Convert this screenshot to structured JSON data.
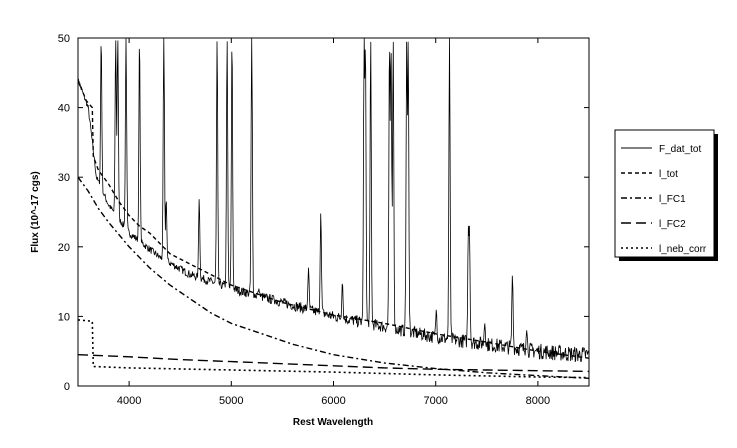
{
  "chart_data": {
    "type": "line",
    "xlabel": "Rest Wavelength",
    "ylabel": "Flux (10^-17 cgs)",
    "xlim": [
      3500,
      8500
    ],
    "ylim": [
      0,
      50
    ],
    "x_ticks": [
      4000,
      5000,
      6000,
      7000,
      8000
    ],
    "y_ticks": [
      0,
      10,
      20,
      30,
      40,
      50
    ],
    "legend_placement": "right",
    "series": [
      {
        "name": "F_dat_tot",
        "style": "solid",
        "continuum": [
          [
            3500,
            44
          ],
          [
            3600,
            40
          ],
          [
            3680,
            30
          ],
          [
            3800,
            26
          ],
          [
            4000,
            22
          ],
          [
            4300,
            18.5
          ],
          [
            4600,
            16
          ],
          [
            5000,
            14
          ],
          [
            5500,
            12
          ],
          [
            6000,
            10
          ],
          [
            6500,
            8.5
          ],
          [
            7000,
            7
          ],
          [
            7500,
            6
          ],
          [
            8000,
            5
          ],
          [
            8400,
            4.5
          ]
        ],
        "lines": [
          [
            3727,
            50
          ],
          [
            3869,
            50
          ],
          [
            3889,
            50
          ],
          [
            3970,
            50
          ],
          [
            4102,
            50
          ],
          [
            4340,
            50
          ],
          [
            4363,
            27
          ],
          [
            4686,
            27
          ],
          [
            4861,
            50
          ],
          [
            4959,
            50
          ],
          [
            5007,
            50
          ],
          [
            5200,
            50
          ],
          [
            5270,
            14
          ],
          [
            5412,
            13
          ],
          [
            5755,
            17
          ],
          [
            5876,
            25
          ],
          [
            6087,
            15
          ],
          [
            6300,
            50
          ],
          [
            6312,
            50
          ],
          [
            6364,
            50
          ],
          [
            6548,
            50
          ],
          [
            6563,
            50
          ],
          [
            6584,
            50
          ],
          [
            6716,
            50
          ],
          [
            6731,
            50
          ],
          [
            7006,
            11
          ],
          [
            7135,
            50
          ],
          [
            7320,
            23
          ],
          [
            7330,
            23
          ],
          [
            7480,
            9
          ],
          [
            7751,
            16
          ],
          [
            7890,
            8
          ]
        ]
      },
      {
        "name": "l_tot",
        "style": "dash",
        "points": [
          [
            3500,
            44
          ],
          [
            3580,
            41
          ],
          [
            3640,
            40
          ],
          [
            3650,
            33
          ],
          [
            3700,
            31
          ],
          [
            3800,
            29
          ],
          [
            3900,
            26.5
          ],
          [
            4000,
            24.5
          ],
          [
            4100,
            23
          ],
          [
            4200,
            22
          ],
          [
            4400,
            19
          ],
          [
            4600,
            17.5
          ],
          [
            4800,
            16
          ],
          [
            5000,
            14.5
          ],
          [
            5200,
            13.5
          ],
          [
            5500,
            12
          ],
          [
            6000,
            10.2
          ],
          [
            6500,
            9
          ],
          [
            7000,
            7.5
          ],
          [
            7500,
            6.3
          ],
          [
            8000,
            5
          ],
          [
            8500,
            4
          ]
        ]
      },
      {
        "name": "l_FC1",
        "style": "dashdot",
        "points": [
          [
            3500,
            30
          ],
          [
            3600,
            28
          ],
          [
            3700,
            25.5
          ],
          [
            3800,
            23.5
          ],
          [
            4000,
            20
          ],
          [
            4200,
            17
          ],
          [
            4400,
            14.5
          ],
          [
            4600,
            12.5
          ],
          [
            4800,
            10.5
          ],
          [
            5000,
            9
          ],
          [
            5300,
            7.5
          ],
          [
            5600,
            6
          ],
          [
            6000,
            4.5
          ],
          [
            6500,
            3.3
          ],
          [
            7000,
            2.5
          ],
          [
            7500,
            1.9
          ],
          [
            8000,
            1.5
          ],
          [
            8500,
            1.1
          ]
        ]
      },
      {
        "name": "l_FC2",
        "style": "longdash",
        "points": [
          [
            3500,
            4.5
          ],
          [
            4000,
            4.2
          ],
          [
            4500,
            3.8
          ],
          [
            5000,
            3.5
          ],
          [
            5500,
            3.2
          ],
          [
            6000,
            2.9
          ],
          [
            6500,
            2.6
          ],
          [
            7000,
            2.4
          ],
          [
            7500,
            2.3
          ],
          [
            8000,
            2.2
          ],
          [
            8500,
            2.1
          ]
        ]
      },
      {
        "name": "l_neb_corr",
        "style": "dot",
        "points": [
          [
            3500,
            9.5
          ],
          [
            3640,
            9.3
          ],
          [
            3650,
            2.8
          ],
          [
            4000,
            2.6
          ],
          [
            5000,
            2.3
          ],
          [
            6000,
            2.0
          ],
          [
            7000,
            1.6
          ],
          [
            8000,
            1.3
          ],
          [
            8500,
            1.2
          ]
        ]
      }
    ]
  }
}
